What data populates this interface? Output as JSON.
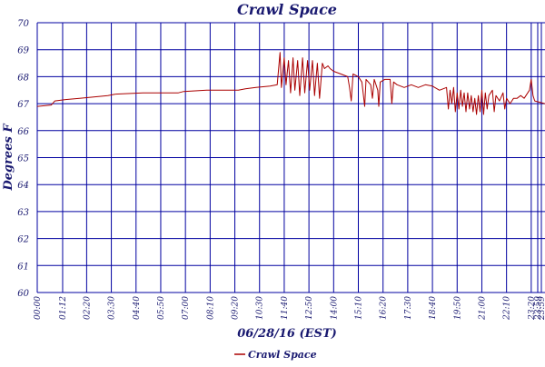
{
  "chart_data": {
    "type": "line",
    "title": "Crawl Space",
    "xlabel": "06/28/16 (EST)",
    "ylabel": "Degrees F",
    "ylim": [
      60,
      70
    ],
    "y_ticks": [
      "60",
      "61",
      "62",
      "63",
      "64",
      "65",
      "66",
      "67",
      "68",
      "69",
      "70"
    ],
    "x_range": [
      "00:00",
      "23:59"
    ],
    "x_tick_labels": [
      "00:00",
      "01:12",
      "02:20",
      "03:30",
      "04:40",
      "05:50",
      "07:00",
      "08:10",
      "09:20",
      "10:30",
      "11:40",
      "12:50",
      "14:00",
      "15:10",
      "16:20",
      "17:30",
      "18:40",
      "19:50",
      "21:00",
      "22:10",
      "23:20",
      "23:59",
      "23:59"
    ],
    "grid": true,
    "legend_position": "bottom-left",
    "colors": {
      "series": "#aa0000",
      "grid": "#0000a0",
      "text": "#191970"
    },
    "series": [
      {
        "name": "Crawl Space",
        "points": [
          [
            "00:00",
            66.9
          ],
          [
            "00:40",
            66.95
          ],
          [
            "00:50",
            67.1
          ],
          [
            "01:20",
            67.15
          ],
          [
            "02:00",
            67.2
          ],
          [
            "02:40",
            67.25
          ],
          [
            "03:20",
            67.3
          ],
          [
            "03:40",
            67.35
          ],
          [
            "05:00",
            67.4
          ],
          [
            "06:40",
            67.4
          ],
          [
            "06:55",
            67.45
          ],
          [
            "08:00",
            67.5
          ],
          [
            "09:30",
            67.5
          ],
          [
            "09:50",
            67.55
          ],
          [
            "10:20",
            67.6
          ],
          [
            "11:00",
            67.65
          ],
          [
            "11:20",
            67.7
          ],
          [
            "11:28",
            68.9
          ],
          [
            "11:32",
            67.6
          ],
          [
            "11:40",
            68.7
          ],
          [
            "11:45",
            67.7
          ],
          [
            "11:52",
            68.6
          ],
          [
            "11:58",
            67.4
          ],
          [
            "12:05",
            68.7
          ],
          [
            "12:10",
            67.5
          ],
          [
            "12:18",
            68.6
          ],
          [
            "12:24",
            67.3
          ],
          [
            "12:32",
            68.7
          ],
          [
            "12:38",
            67.4
          ],
          [
            "12:46",
            68.6
          ],
          [
            "12:52",
            67.5
          ],
          [
            "13:00",
            68.6
          ],
          [
            "13:06",
            67.3
          ],
          [
            "13:14",
            68.5
          ],
          [
            "13:20",
            67.2
          ],
          [
            "13:28",
            68.5
          ],
          [
            "13:34",
            68.3
          ],
          [
            "13:44",
            68.4
          ],
          [
            "13:50",
            68.3
          ],
          [
            "14:00",
            68.2
          ],
          [
            "14:20",
            68.1
          ],
          [
            "14:40",
            68.0
          ],
          [
            "14:45",
            67.6
          ],
          [
            "14:50",
            67.1
          ],
          [
            "14:55",
            68.1
          ],
          [
            "15:10",
            68.0
          ],
          [
            "15:20",
            67.8
          ],
          [
            "15:28",
            66.9
          ],
          [
            "15:32",
            67.9
          ],
          [
            "15:45",
            67.7
          ],
          [
            "15:50",
            67.2
          ],
          [
            "15:55",
            67.9
          ],
          [
            "16:05",
            67.5
          ],
          [
            "16:08",
            66.9
          ],
          [
            "16:12",
            67.8
          ],
          [
            "16:25",
            67.9
          ],
          [
            "16:40",
            67.9
          ],
          [
            "16:45",
            67.0
          ],
          [
            "16:50",
            67.8
          ],
          [
            "17:00",
            67.7
          ],
          [
            "17:20",
            67.6
          ],
          [
            "17:40",
            67.7
          ],
          [
            "18:00",
            67.6
          ],
          [
            "18:20",
            67.7
          ],
          [
            "18:40",
            67.65
          ],
          [
            "19:00",
            67.5
          ],
          [
            "19:20",
            67.6
          ],
          [
            "19:25",
            66.8
          ],
          [
            "19:30",
            67.5
          ],
          [
            "19:35",
            67.0
          ],
          [
            "19:40",
            67.6
          ],
          [
            "19:45",
            66.7
          ],
          [
            "19:50",
            67.4
          ],
          [
            "19:55",
            66.8
          ],
          [
            "20:00",
            67.5
          ],
          [
            "20:05",
            66.9
          ],
          [
            "20:10",
            67.4
          ],
          [
            "20:15",
            66.7
          ],
          [
            "20:20",
            67.4
          ],
          [
            "20:25",
            66.8
          ],
          [
            "20:30",
            67.3
          ],
          [
            "20:35",
            66.7
          ],
          [
            "20:40",
            67.2
          ],
          [
            "20:45",
            66.6
          ],
          [
            "20:50",
            67.3
          ],
          [
            "20:55",
            66.7
          ],
          [
            "21:00",
            67.5
          ],
          [
            "21:05",
            66.6
          ],
          [
            "21:10",
            67.4
          ],
          [
            "21:15",
            66.8
          ],
          [
            "21:20",
            67.3
          ],
          [
            "21:30",
            67.5
          ],
          [
            "21:35",
            66.7
          ],
          [
            "21:40",
            67.3
          ],
          [
            "21:50",
            67.1
          ],
          [
            "22:00",
            67.4
          ],
          [
            "22:05",
            66.8
          ],
          [
            "22:10",
            67.2
          ],
          [
            "22:20",
            67.0
          ],
          [
            "22:30",
            67.2
          ],
          [
            "22:40",
            67.2
          ],
          [
            "22:50",
            67.3
          ],
          [
            "23:00",
            67.2
          ],
          [
            "23:10",
            67.4
          ],
          [
            "23:15",
            67.5
          ],
          [
            "23:20",
            67.9
          ],
          [
            "23:25",
            67.3
          ],
          [
            "23:30",
            67.1
          ],
          [
            "23:59",
            67.0
          ]
        ]
      }
    ]
  }
}
